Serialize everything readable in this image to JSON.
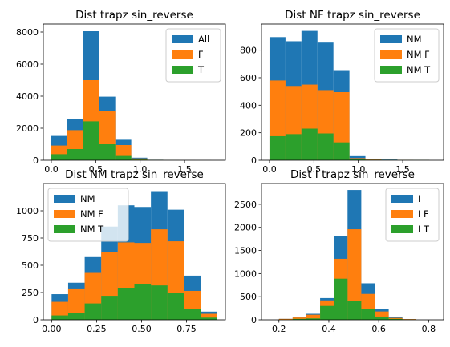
{
  "colors": {
    "blue": "#1f77b4",
    "orange": "#ff7f0e",
    "green": "#2ca02c"
  },
  "chart_data": [
    {
      "type": "bar",
      "subtype": "histogram",
      "title": "Dist trapz sin_reverse",
      "xlabel": "",
      "ylabel": "",
      "xlim": [
        -0.09,
        1.96
      ],
      "ylim": [
        0,
        8500
      ],
      "xticks": [
        0.0,
        0.5,
        1.0,
        1.5
      ],
      "xtick_labels": [
        "0.0",
        "0.5",
        "1.0",
        "1.5"
      ],
      "yticks": [
        0,
        2000,
        4000,
        6000,
        8000
      ],
      "ytick_labels": [
        "0",
        "2000",
        "4000",
        "6000",
        "8000"
      ],
      "bin_edges": [
        0.0,
        0.18,
        0.36,
        0.54,
        0.72,
        0.9,
        1.08,
        1.26,
        1.44,
        1.62,
        1.8
      ],
      "legend_position": "upper right",
      "series": [
        {
          "name": "All",
          "color": "blue",
          "values": [
            1520,
            2580,
            8050,
            3970,
            1280,
            160,
            30,
            10,
            5,
            3
          ]
        },
        {
          "name": "F",
          "color": "orange",
          "values": [
            920,
            1880,
            5000,
            3050,
            950,
            110,
            20,
            5,
            3,
            2
          ]
        },
        {
          "name": "T",
          "color": "green",
          "values": [
            380,
            700,
            2430,
            1000,
            270,
            40,
            8,
            3,
            2,
            1
          ]
        }
      ]
    },
    {
      "type": "bar",
      "subtype": "histogram",
      "title": "Dist NF trapz sin_reverse",
      "xlabel": "",
      "ylabel": "",
      "xlim": [
        -0.09,
        1.96
      ],
      "ylim": [
        0,
        990
      ],
      "xticks": [
        0.0,
        0.5,
        1.0,
        1.5
      ],
      "xtick_labels": [
        "0.0",
        "0.5",
        "1.0",
        "1.5"
      ],
      "yticks": [
        0,
        200,
        400,
        600,
        800
      ],
      "ytick_labels": [
        "0",
        "200",
        "400",
        "600",
        "800"
      ],
      "bin_edges": [
        0.0,
        0.18,
        0.36,
        0.54,
        0.72,
        0.9,
        1.08,
        1.26,
        1.44,
        1.62,
        1.8
      ],
      "legend_position": "upper right",
      "series": [
        {
          "name": "NM",
          "color": "blue",
          "values": [
            895,
            865,
            940,
            855,
            655,
            30,
            10,
            5,
            3,
            2
          ]
        },
        {
          "name": "NM F",
          "color": "orange",
          "values": [
            580,
            540,
            550,
            510,
            495,
            15,
            5,
            3,
            2,
            1
          ]
        },
        {
          "name": "NM T",
          "color": "green",
          "values": [
            175,
            190,
            230,
            195,
            130,
            8,
            3,
            2,
            1,
            1
          ]
        }
      ]
    },
    {
      "type": "bar",
      "subtype": "histogram",
      "title": "Dist NM trapz sin_reverse",
      "xlabel": "",
      "ylabel": "",
      "xlim": [
        -0.046,
        0.966
      ],
      "ylim": [
        0,
        1250
      ],
      "xticks": [
        0.0,
        0.25,
        0.5,
        0.75
      ],
      "xtick_labels": [
        "0.00",
        "0.25",
        "0.50",
        "0.75"
      ],
      "yticks": [
        0,
        250,
        500,
        750,
        1000
      ],
      "ytick_labels": [
        "0",
        "250",
        "500",
        "750",
        "1000"
      ],
      "bin_edges": [
        0.0,
        0.092,
        0.184,
        0.276,
        0.368,
        0.46,
        0.552,
        0.644,
        0.736,
        0.828,
        0.92
      ],
      "legend_position": "upper left",
      "series": [
        {
          "name": "NM",
          "color": "blue",
          "values": [
            235,
            340,
            575,
            855,
            1050,
            1035,
            1180,
            1010,
            405,
            75
          ]
        },
        {
          "name": "NM F",
          "color": "orange",
          "values": [
            165,
            280,
            430,
            620,
            710,
            705,
            830,
            720,
            265,
            55
          ]
        },
        {
          "name": "NM T",
          "color": "green",
          "values": [
            40,
            60,
            150,
            220,
            290,
            330,
            315,
            250,
            100,
            20
          ]
        }
      ]
    },
    {
      "type": "bar",
      "subtype": "histogram",
      "title": "Dist I trapz sin_reverse",
      "xlabel": "",
      "ylabel": "",
      "xlim": [
        0.13,
        0.86
      ],
      "ylim": [
        0,
        2950
      ],
      "xticks": [
        0.2,
        0.4,
        0.6,
        0.8
      ],
      "xtick_labels": [
        "0.2",
        "0.4",
        "0.6",
        "0.8"
      ],
      "yticks": [
        0,
        500,
        1000,
        1500,
        2000,
        2500
      ],
      "ytick_labels": [
        "0",
        "500",
        "1000",
        "1500",
        "2000",
        "2500"
      ],
      "bin_edges": [
        0.2,
        0.255,
        0.31,
        0.365,
        0.42,
        0.475,
        0.53,
        0.585,
        0.64,
        0.695,
        0.75
      ],
      "legend_position": "upper right",
      "series": [
        {
          "name": "I",
          "color": "blue",
          "values": [
            20,
            60,
            130,
            470,
            1820,
            2810,
            790,
            235,
            60,
            15
          ]
        },
        {
          "name": "I F",
          "color": "orange",
          "values": [
            20,
            50,
            110,
            420,
            1320,
            1960,
            560,
            180,
            40,
            15
          ]
        },
        {
          "name": "I T",
          "color": "green",
          "values": [
            5,
            20,
            30,
            300,
            890,
            400,
            230,
            70,
            20,
            5
          ]
        }
      ]
    }
  ]
}
